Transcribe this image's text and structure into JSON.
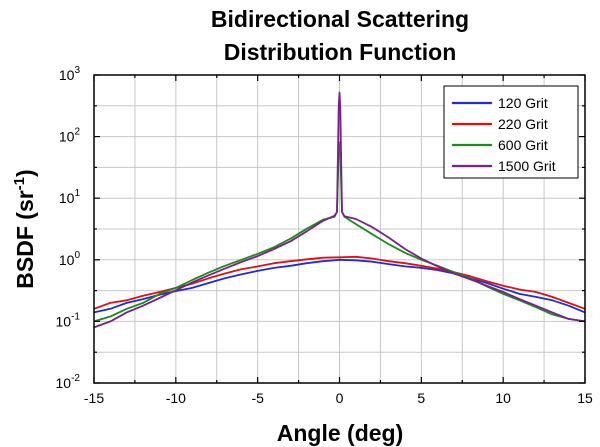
{
  "chart_data": {
    "type": "line",
    "title_lines": [
      "Bidirectional Scattering",
      "Distribution Function"
    ],
    "xlabel": "Angle (deg)",
    "ylabel": "BSDF (sr",
    "ylabel_exponent": "-1",
    "ylabel_suffix": ")",
    "xlim": [
      -15,
      15
    ],
    "ylim": [
      0.01,
      1000
    ],
    "yscale": "log",
    "grid": true,
    "legend_position": "top-right",
    "x_ticks": [
      "-15",
      "-10",
      "-5",
      "0",
      "5",
      "10",
      "15"
    ],
    "y_ticks": [
      {
        "base": "10",
        "exp": "-2",
        "value": 0.01
      },
      {
        "base": "10",
        "exp": "-1",
        "value": 0.1
      },
      {
        "base": "10",
        "exp": "0",
        "value": 1
      },
      {
        "base": "10",
        "exp": "1",
        "value": 10
      },
      {
        "base": "10",
        "exp": "2",
        "value": 100
      },
      {
        "base": "10",
        "exp": "3",
        "value": 1000
      }
    ],
    "series": [
      {
        "name": "120 Grit",
        "color": "#1f2bd6",
        "x": [
          -15,
          -14,
          -13,
          -12,
          -11,
          -10,
          -9,
          -8,
          -7,
          -6,
          -5,
          -4,
          -3,
          -2,
          -1,
          0,
          1,
          2,
          3,
          4,
          5,
          6,
          7,
          8,
          9,
          10,
          11,
          12,
          13,
          14,
          15
        ],
        "y": [
          0.14,
          0.16,
          0.2,
          0.23,
          0.27,
          0.31,
          0.35,
          0.42,
          0.5,
          0.58,
          0.66,
          0.74,
          0.8,
          0.88,
          0.95,
          1.0,
          0.98,
          0.93,
          0.85,
          0.78,
          0.74,
          0.68,
          0.6,
          0.5,
          0.42,
          0.34,
          0.28,
          0.25,
          0.22,
          0.18,
          0.14
        ]
      },
      {
        "name": "220 Grit",
        "color": "#e01010",
        "x": [
          -15,
          -14,
          -13,
          -12,
          -11,
          -10,
          -9,
          -8,
          -7,
          -6,
          -5,
          -4,
          -3,
          -2,
          -1,
          0,
          1,
          2,
          3,
          4,
          5,
          6,
          7,
          8,
          9,
          10,
          11,
          12,
          13,
          14,
          15
        ],
        "y": [
          0.16,
          0.2,
          0.22,
          0.26,
          0.3,
          0.35,
          0.41,
          0.5,
          0.6,
          0.7,
          0.78,
          0.88,
          0.95,
          1.02,
          1.08,
          1.1,
          1.12,
          1.05,
          0.95,
          0.88,
          0.8,
          0.72,
          0.63,
          0.54,
          0.45,
          0.38,
          0.33,
          0.3,
          0.25,
          0.2,
          0.16
        ]
      },
      {
        "name": "600 Grit",
        "color": "#1a8c1a",
        "x": [
          -15,
          -14,
          -13,
          -12,
          -11,
          -10,
          -9,
          -8,
          -7,
          -6,
          -5,
          -4,
          -3,
          -2,
          -1,
          -0.3,
          -0.15,
          -0.05,
          0,
          0.05,
          0.15,
          0.3,
          1,
          2,
          3,
          4,
          5,
          6,
          7,
          8,
          9,
          10,
          11,
          12,
          13,
          14,
          15
        ],
        "y": [
          0.1,
          0.12,
          0.16,
          0.2,
          0.28,
          0.35,
          0.47,
          0.62,
          0.8,
          1.0,
          1.25,
          1.6,
          2.2,
          3.2,
          4.5,
          5.0,
          6.0,
          60,
          80,
          60,
          6.0,
          5.0,
          3.8,
          2.6,
          1.8,
          1.3,
          1.0,
          0.8,
          0.63,
          0.5,
          0.37,
          0.28,
          0.22,
          0.17,
          0.13,
          0.11,
          0.1
        ]
      },
      {
        "name": "1500 Grit",
        "color": "#7b1f8c",
        "x": [
          -15,
          -14,
          -13,
          -12,
          -11,
          -10,
          -9,
          -8,
          -7,
          -6,
          -5,
          -4,
          -3,
          -2,
          -1,
          -0.3,
          -0.15,
          -0.05,
          0,
          0.05,
          0.15,
          0.3,
          1,
          2,
          3,
          4,
          5,
          6,
          7,
          8,
          9,
          10,
          11,
          12,
          13,
          14,
          15
        ],
        "y": [
          0.08,
          0.1,
          0.14,
          0.18,
          0.24,
          0.32,
          0.43,
          0.56,
          0.72,
          0.92,
          1.15,
          1.5,
          2.0,
          2.9,
          4.3,
          5.2,
          6.0,
          300,
          520,
          300,
          6.0,
          5.1,
          4.6,
          3.4,
          2.3,
          1.5,
          1.05,
          0.78,
          0.6,
          0.48,
          0.38,
          0.3,
          0.23,
          0.18,
          0.14,
          0.11,
          0.1
        ]
      }
    ]
  }
}
